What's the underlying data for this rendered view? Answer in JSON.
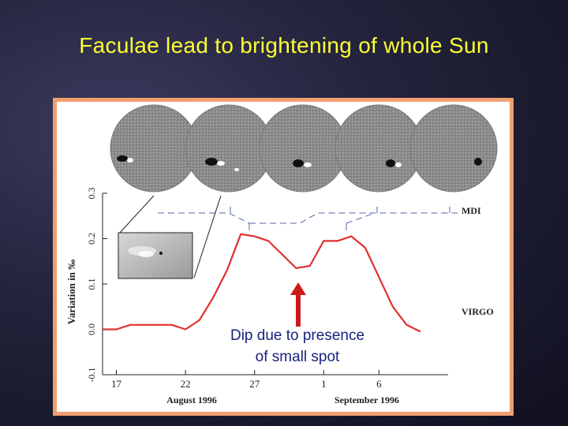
{
  "slide": {
    "title": "Faculae lead to brightening of whole Sun"
  },
  "instrument_labels": {
    "top": "MDI",
    "bottom": "VIRGO"
  },
  "annotation": {
    "line1": "Dip due to presence",
    "line2": "of small spot"
  },
  "colors": {
    "title": "#ffff33",
    "series": "#e03030",
    "arrow": "#cc1a1a",
    "annotation_text": "#1a237e",
    "frame": "#f0a070"
  },
  "chart_data": {
    "type": "line",
    "title": "",
    "ylabel": "Variation in ‰",
    "xlabel": [
      "August 1996",
      "September 1996"
    ],
    "ylim": [
      -0.1,
      0.3
    ],
    "yticks": [
      -0.1,
      0.0,
      0.1,
      0.2,
      0.3
    ],
    "xticks": [
      {
        "day": 17,
        "label": "17"
      },
      {
        "day": 22,
        "label": "22"
      },
      {
        "day": 27,
        "label": "27"
      },
      {
        "day": 32,
        "label": "1"
      },
      {
        "day": 36,
        "label": "6"
      }
    ],
    "x_day_range": [
      16,
      41
    ],
    "series": [
      {
        "name": "VIRGO",
        "x": [
          16,
          17,
          18,
          19,
          20,
          21,
          22,
          23,
          24,
          25,
          26,
          27,
          28,
          29,
          30,
          31,
          32,
          33,
          34,
          35,
          36,
          37,
          38,
          39
        ],
        "values": [
          0.0,
          0.0,
          0.01,
          0.01,
          0.01,
          0.01,
          0.0,
          0.02,
          0.07,
          0.13,
          0.21,
          0.205,
          0.195,
          0.165,
          0.135,
          0.14,
          0.195,
          0.195,
          0.205,
          0.18,
          0.115,
          0.05,
          0.01,
          -0.005
        ]
      }
    ]
  }
}
